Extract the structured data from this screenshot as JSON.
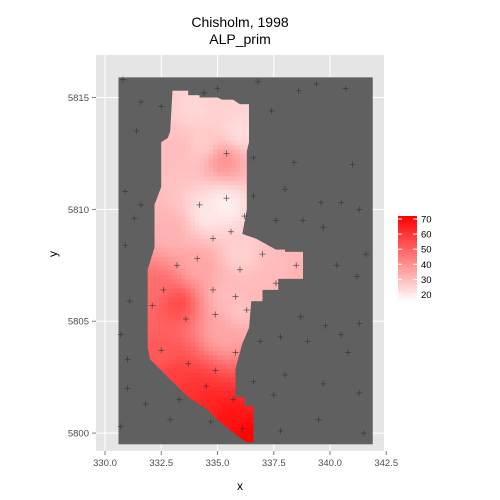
{
  "chart_data": {
    "type": "heatmap",
    "title": "Chisholm, 1998",
    "subtitle": "ALP_prim",
    "xlabel": "x",
    "ylabel": "y",
    "xlim": [
      329.6,
      342.4
    ],
    "ylim": [
      5799.2,
      5816.9
    ],
    "x_ticks": [
      {
        "value": 330.0,
        "label": "330.0"
      },
      {
        "value": 332.5,
        "label": "332.5"
      },
      {
        "value": 335.0,
        "label": "335.0"
      },
      {
        "value": 337.5,
        "label": "337.5"
      },
      {
        "value": 340.0,
        "label": "340.0"
      },
      {
        "value": 342.5,
        "label": "342.5"
      }
    ],
    "y_ticks": [
      {
        "value": 5800,
        "label": "5800"
      },
      {
        "value": 5805,
        "label": "5805"
      },
      {
        "value": 5810,
        "label": "5810"
      },
      {
        "value": 5815,
        "label": "5815"
      }
    ],
    "raster_extent": {
      "x": [
        330.6,
        341.9
      ],
      "y": [
        5799.5,
        5815.9
      ]
    },
    "background_color": "#606060",
    "color_scale": {
      "low_color": "#ffffff",
      "high_color": "#ff0000",
      "min": 15,
      "max": 72
    },
    "legend": {
      "position": "right",
      "breaks": [
        70,
        60,
        50,
        40,
        30,
        20
      ]
    },
    "region_outline": [
      [
        333.0,
        5815.3
      ],
      [
        333.7,
        5815.3
      ],
      [
        333.7,
        5815.1
      ],
      [
        334.2,
        5815.1
      ],
      [
        334.2,
        5815.0
      ],
      [
        335.0,
        5815.0
      ],
      [
        335.2,
        5814.9
      ],
      [
        335.7,
        5814.9
      ],
      [
        336.0,
        5814.7
      ],
      [
        336.4,
        5814.7
      ],
      [
        336.4,
        5813.0
      ],
      [
        336.3,
        5812.6
      ],
      [
        336.3,
        5810.0
      ],
      [
        336.1,
        5808.9
      ],
      [
        336.7,
        5808.7
      ],
      [
        337.6,
        5808.2
      ],
      [
        338.0,
        5808.2
      ],
      [
        338.0,
        5808.1
      ],
      [
        338.8,
        5808.1
      ],
      [
        338.8,
        5806.9
      ],
      [
        337.7,
        5806.9
      ],
      [
        337.7,
        5806.4
      ],
      [
        337.0,
        5806.4
      ],
      [
        337.0,
        5805.9
      ],
      [
        336.5,
        5805.9
      ],
      [
        336.4,
        5804.7
      ],
      [
        336.1,
        5804.0
      ],
      [
        335.8,
        5802.9
      ],
      [
        335.8,
        5801.6
      ],
      [
        336.2,
        5801.6
      ],
      [
        336.2,
        5801.2
      ],
      [
        336.6,
        5801.2
      ],
      [
        336.6,
        5799.6
      ],
      [
        336.3,
        5799.6
      ],
      [
        336.0,
        5799.8
      ],
      [
        335.6,
        5800.1
      ],
      [
        335.0,
        5800.6
      ],
      [
        334.5,
        5801.1
      ],
      [
        333.7,
        5801.6
      ],
      [
        333.2,
        5802.1
      ],
      [
        332.8,
        5802.5
      ],
      [
        332.0,
        5803.3
      ],
      [
        331.9,
        5803.8
      ],
      [
        331.9,
        5807.3
      ],
      [
        332.2,
        5808.3
      ],
      [
        332.2,
        5810.2
      ],
      [
        332.5,
        5811.0
      ],
      [
        332.5,
        5813.0
      ],
      [
        332.8,
        5813.2
      ],
      [
        332.9,
        5813.5
      ]
    ],
    "value_field": [
      {
        "x": 336.3,
        "y": 5799.8,
        "value": 72
      },
      {
        "x": 335.5,
        "y": 5800.7,
        "value": 68
      },
      {
        "x": 334.5,
        "y": 5801.3,
        "value": 64
      },
      {
        "x": 333.8,
        "y": 5801.9,
        "value": 61
      },
      {
        "x": 333.0,
        "y": 5802.6,
        "value": 58
      },
      {
        "x": 332.5,
        "y": 5803.5,
        "value": 52
      },
      {
        "x": 333.2,
        "y": 5805.8,
        "value": 56
      },
      {
        "x": 332.3,
        "y": 5806.5,
        "value": 48
      },
      {
        "x": 334.2,
        "y": 5807.5,
        "value": 35
      },
      {
        "x": 335.2,
        "y": 5804.5,
        "value": 35
      },
      {
        "x": 336.0,
        "y": 5805.5,
        "value": 28
      },
      {
        "x": 335.4,
        "y": 5806.2,
        "value": 30
      },
      {
        "x": 333.0,
        "y": 5809.2,
        "value": 32
      },
      {
        "x": 334.5,
        "y": 5809.8,
        "value": 20
      },
      {
        "x": 335.3,
        "y": 5810.2,
        "value": 18
      },
      {
        "x": 336.0,
        "y": 5808.0,
        "value": 25
      },
      {
        "x": 337.8,
        "y": 5807.5,
        "value": 30
      },
      {
        "x": 338.6,
        "y": 5807.3,
        "value": 32
      },
      {
        "x": 335.3,
        "y": 5812.2,
        "value": 40
      },
      {
        "x": 334.3,
        "y": 5813.0,
        "value": 26
      },
      {
        "x": 333.3,
        "y": 5812.8,
        "value": 30
      },
      {
        "x": 334.0,
        "y": 5814.5,
        "value": 24
      },
      {
        "x": 335.5,
        "y": 5814.3,
        "value": 25
      },
      {
        "x": 336.0,
        "y": 5813.5,
        "value": 22
      }
    ],
    "sample_points": [
      [
        330.8,
        5815.8
      ],
      [
        331.6,
        5814.8
      ],
      [
        332.5,
        5814.6
      ],
      [
        334.4,
        5815.2
      ],
      [
        335.0,
        5815.4
      ],
      [
        336.8,
        5815.7
      ],
      [
        337.4,
        5814.4
      ],
      [
        338.6,
        5815.3
      ],
      [
        339.4,
        5815.6
      ],
      [
        340.7,
        5815.4
      ],
      [
        331.4,
        5813.5
      ],
      [
        335.4,
        5812.5
      ],
      [
        336.6,
        5812.3
      ],
      [
        338.4,
        5812.1
      ],
      [
        341.0,
        5812.0
      ],
      [
        330.9,
        5810.8
      ],
      [
        331.6,
        5810.2
      ],
      [
        334.2,
        5810.2
      ],
      [
        335.4,
        5810.5
      ],
      [
        336.6,
        5810.6
      ],
      [
        338.0,
        5810.9
      ],
      [
        339.6,
        5810.3
      ],
      [
        340.5,
        5810.3
      ],
      [
        341.3,
        5810.0
      ],
      [
        331.3,
        5809.6
      ],
      [
        334.8,
        5808.7
      ],
      [
        335.6,
        5809.0
      ],
      [
        336.2,
        5809.7
      ],
      [
        337.6,
        5809.5
      ],
      [
        338.8,
        5809.5
      ],
      [
        339.7,
        5809.2
      ],
      [
        330.9,
        5808.4
      ],
      [
        333.2,
        5807.5
      ],
      [
        334.1,
        5807.8
      ],
      [
        336.0,
        5807.3
      ],
      [
        337.0,
        5808.0
      ],
      [
        338.5,
        5807.5
      ],
      [
        340.3,
        5807.5
      ],
      [
        341.6,
        5808.0
      ],
      [
        332.6,
        5806.4
      ],
      [
        334.8,
        5806.4
      ],
      [
        335.8,
        5806.1
      ],
      [
        337.6,
        5806.7
      ],
      [
        341.2,
        5807.0
      ],
      [
        331.1,
        5805.9
      ],
      [
        332.1,
        5805.7
      ],
      [
        333.6,
        5805.1
      ],
      [
        334.9,
        5805.3
      ],
      [
        336.3,
        5805.5
      ],
      [
        338.7,
        5805.2
      ],
      [
        339.8,
        5804.8
      ],
      [
        341.3,
        5804.9
      ],
      [
        330.7,
        5804.4
      ],
      [
        335.8,
        5803.6
      ],
      [
        336.9,
        5804.1
      ],
      [
        337.8,
        5804.3
      ],
      [
        339.0,
        5804.1
      ],
      [
        340.5,
        5804.4
      ],
      [
        331.0,
        5803.3
      ],
      [
        332.5,
        5803.7
      ],
      [
        333.7,
        5803.1
      ],
      [
        334.9,
        5802.8
      ],
      [
        336.6,
        5802.3
      ],
      [
        338.0,
        5802.6
      ],
      [
        340.8,
        5803.6
      ],
      [
        331.0,
        5802.0
      ],
      [
        331.8,
        5801.3
      ],
      [
        333.3,
        5801.5
      ],
      [
        334.5,
        5802.1
      ],
      [
        335.7,
        5801.5
      ],
      [
        337.5,
        5801.7
      ],
      [
        339.7,
        5802.2
      ],
      [
        341.3,
        5801.8
      ],
      [
        330.7,
        5800.3
      ],
      [
        332.9,
        5800.6
      ],
      [
        334.7,
        5800.5
      ],
      [
        336.1,
        5800.2
      ],
      [
        337.8,
        5800.1
      ],
      [
        339.5,
        5800.6
      ],
      [
        341.5,
        5800.0
      ]
    ]
  }
}
